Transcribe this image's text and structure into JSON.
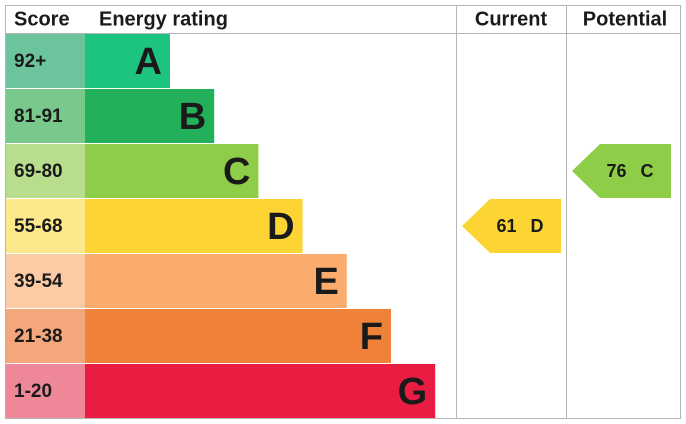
{
  "chart_data": {
    "type": "epc",
    "headers": [
      "Score",
      "Energy rating",
      "Current",
      "Potential"
    ],
    "bands": [
      {
        "score": "92+",
        "letter": "A",
        "color": "#1dc47f",
        "score_color": "#6cc49c"
      },
      {
        "score": "81-91",
        "letter": "B",
        "color": "#22b05a",
        "score_color": "#79c98c"
      },
      {
        "score": "69-80",
        "letter": "C",
        "color": "#8dcd47",
        "score_color": "#b7dd8d"
      },
      {
        "score": "55-68",
        "letter": "D",
        "color": "#fcd535",
        "score_color": "#fde98b"
      },
      {
        "score": "39-54",
        "letter": "E",
        "color": "#f9ac6d",
        "score_color": "#fbcba5"
      },
      {
        "score": "21-38",
        "letter": "F",
        "color": "#ef8238",
        "score_color": "#f5a77c"
      },
      {
        "score": "1-20",
        "letter": "G",
        "color": "#e91c41",
        "score_color": "#ee8898"
      }
    ],
    "current": {
      "value": 61,
      "band": "D"
    },
    "potential": {
      "value": 76,
      "band": "C"
    }
  }
}
